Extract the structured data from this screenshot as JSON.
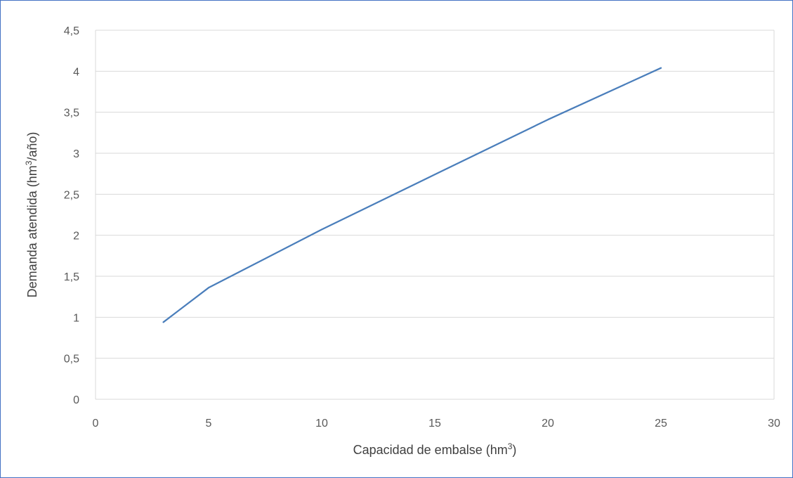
{
  "chart_data": {
    "type": "line",
    "title": "",
    "xlabel": "Capacidad de embalse (hm",
    "xlabel_sup": "3",
    "xlabel_suffix": ")",
    "ylabel": "Demanda atendida (hm",
    "ylabel_sup": "3",
    "ylabel_suffix": "/año)",
    "xlim": [
      0,
      30
    ],
    "ylim": [
      0,
      4.5
    ],
    "xticks": [
      0,
      5,
      10,
      15,
      20,
      25,
      30
    ],
    "yticks": [
      0,
      0.5,
      1,
      1.5,
      2,
      2.5,
      3,
      3.5,
      4,
      4.5
    ],
    "xtick_labels": [
      "0",
      "5",
      "10",
      "15",
      "20",
      "25",
      "30"
    ],
    "ytick_labels": [
      "0",
      "0,5",
      "1",
      "1,5",
      "2",
      "2,5",
      "3",
      "3,5",
      "4",
      "4,5"
    ],
    "grid": "horizontal",
    "legend": "none",
    "series": [
      {
        "color": "#4A7EBB",
        "x": [
          3,
          5,
          10,
          15,
          20,
          25
        ],
        "y": [
          0.94,
          1.36,
          2.07,
          2.74,
          3.41,
          4.04
        ]
      }
    ]
  }
}
